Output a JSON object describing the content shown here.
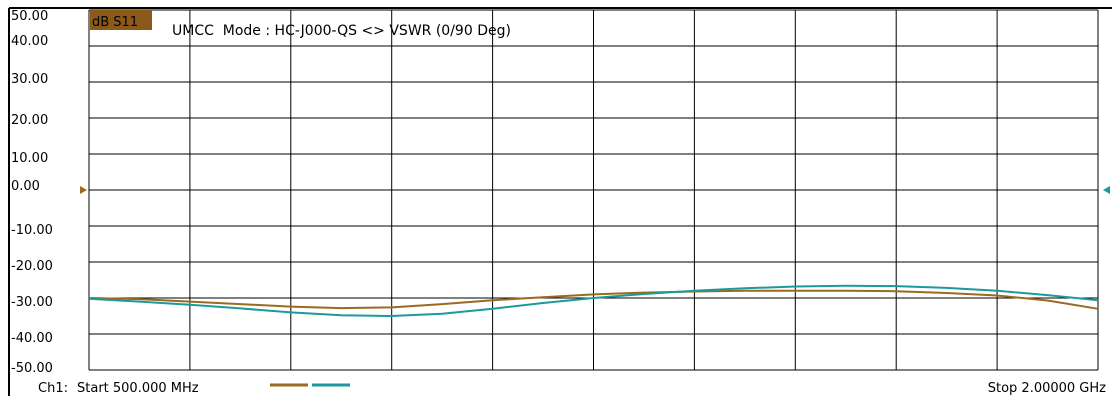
{
  "chart_data": {
    "type": "line",
    "trace_label": "dB S11",
    "title": "UMCC  Mode : HC-J000-QS <> VSWR (0/90 Deg)",
    "channel_label": "Ch1:",
    "start_label": "Start 500.000 MHz",
    "stop_label": "Stop 2.00000 GHz",
    "x_unit": "MHz",
    "xlim": [
      500,
      2000
    ],
    "ylim": [
      -50,
      50
    ],
    "y_ticks": [
      "50.00",
      "40.00",
      "30.00",
      "20.00",
      "10.00",
      "0.00",
      "-10.00",
      "-20.00",
      "-30.00",
      "-40.00",
      "-50.00"
    ],
    "grid": true,
    "x_divisions": 10,
    "y_divisions": 10,
    "series": [
      {
        "color": "#9a6a22",
        "x": [
          500,
          575,
          650,
          725,
          800,
          875,
          950,
          1025,
          1100,
          1175,
          1250,
          1325,
          1400,
          1475,
          1550,
          1625,
          1700,
          1775,
          1850,
          1925,
          2000
        ],
        "values": [
          -30.0,
          -30.3,
          -31.0,
          -31.7,
          -32.4,
          -32.8,
          -32.6,
          -31.7,
          -30.6,
          -29.8,
          -29.0,
          -28.5,
          -28.2,
          -28.0,
          -28.0,
          -28.0,
          -28.1,
          -28.6,
          -29.3,
          -30.7,
          -33.0
        ]
      },
      {
        "color": "#1a9a9a",
        "x": [
          500,
          575,
          650,
          725,
          800,
          875,
          950,
          1025,
          1100,
          1175,
          1250,
          1325,
          1400,
          1475,
          1550,
          1625,
          1700,
          1775,
          1850,
          1925,
          2000
        ],
        "values": [
          -30.2,
          -31.0,
          -31.9,
          -32.9,
          -34.0,
          -34.8,
          -35.0,
          -34.4,
          -33.0,
          -31.4,
          -30.0,
          -28.9,
          -28.0,
          -27.3,
          -26.8,
          -26.6,
          -26.7,
          -27.2,
          -28.0,
          -29.2,
          -30.6
        ]
      }
    ],
    "reference_markers": [
      {
        "side": "left",
        "value": 0,
        "color": "#9a6a22"
      },
      {
        "side": "right",
        "value": 0,
        "color": "#1a9a9a"
      }
    ]
  },
  "frame": {
    "background": "#ffffff",
    "grid_color": "#000000",
    "trace_label_bg": "#8b5a1a"
  }
}
